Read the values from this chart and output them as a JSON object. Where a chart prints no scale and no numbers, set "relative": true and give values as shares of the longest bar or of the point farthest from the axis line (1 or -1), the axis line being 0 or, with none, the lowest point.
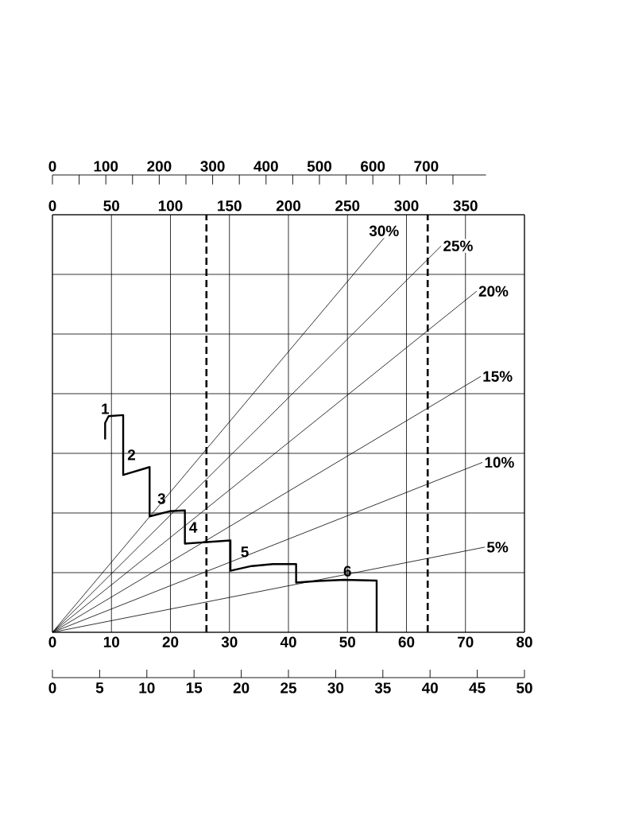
{
  "chart_data": {
    "type": "line",
    "relative": true,
    "grid": true,
    "marker": "none",
    "xlim": [
      0,
      80
    ],
    "xticks": [
      0,
      10,
      20,
      30,
      40,
      50,
      60,
      70,
      80
    ],
    "x2lim": [
      0,
      400
    ],
    "x2ticks": [
      0,
      50,
      100,
      150,
      200,
      250,
      300,
      350
    ],
    "series": [
      {
        "name": "30%",
        "color": "#000000",
        "x": [
          0,
          56.2
        ],
        "values": [
          0,
          1.0
        ]
      },
      {
        "name": "25%",
        "color": "#000000",
        "x": [
          0,
          65.9
        ],
        "values": [
          0,
          0.98
        ]
      },
      {
        "name": "20%",
        "color": "#000000",
        "x": [
          0,
          71.9
        ],
        "values": [
          0,
          0.865
        ]
      },
      {
        "name": "15%",
        "color": "#000000",
        "x": [
          0,
          72.6
        ],
        "values": [
          0,
          0.649
        ]
      },
      {
        "name": "10%",
        "color": "#000000",
        "x": [
          0,
          72.9
        ],
        "values": [
          0,
          0.431
        ]
      },
      {
        "name": "5%",
        "color": "#000000",
        "x": [
          0,
          73.3
        ],
        "values": [
          0,
          0.216
        ]
      },
      {
        "color": "#000000",
        "x": [
          8.93,
          8.93,
          9.52,
          11.99,
          11.99,
          16.47,
          16.47,
          19.84,
          22.45,
          22.45,
          30.17,
          30.17,
          33.76,
          37.35,
          41.3,
          41.3,
          44.98,
          49.47,
          54.95,
          54.95
        ],
        "values": [
          0.489,
          0.531,
          0.548,
          0.551,
          0.399,
          0.419,
          0.294,
          0.307,
          0.309,
          0.225,
          0.233,
          0.156,
          0.168,
          0.173,
          0.173,
          0.126,
          0.13,
          0.133,
          0.131,
          0
        ]
      }
    ],
    "ref_lines": [
      {
        "axis": "x",
        "value": 26.1,
        "line_style": "dashed",
        "color": "#000000"
      },
      {
        "axis": "x",
        "value": 63.6,
        "line_style": "dashed",
        "color": "#000000"
      }
    ],
    "annotations": [
      {
        "text": "1",
        "x": 8.93,
        "y": 0.531
      },
      {
        "text": "2",
        "x": 11.99,
        "y": 0.45
      },
      {
        "text": "3",
        "x": 18.5,
        "y": 0.339
      },
      {
        "text": "4",
        "x": 22.45,
        "y": 0.266
      },
      {
        "text": "5",
        "x": 32.6,
        "y": 0.204
      },
      {
        "text": "6",
        "x": 50.0,
        "y": 0.155
      },
      "0",
      "5",
      "10",
      "15",
      "20",
      "25",
      "30",
      "35",
      "40",
      "45",
      "50",
      "0",
      "100",
      "200",
      "300",
      "400",
      "500",
      "600",
      "700"
    ]
  }
}
